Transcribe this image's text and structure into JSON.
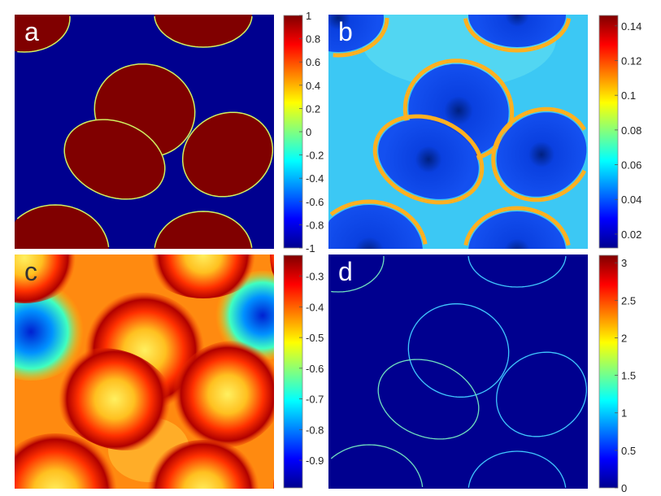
{
  "chart_data": [
    {
      "type": "heatmap",
      "panel_label": "a",
      "colormap": "jet",
      "colorbar": {
        "range": [
          -1,
          1
        ],
        "ticks": [
          "1",
          "0.8",
          "0.6",
          "0.4",
          "0.2",
          "0",
          "-0.2",
          "-0.4",
          "-0.6",
          "-0.8",
          "-1"
        ],
        "tick_values": [
          1,
          0.8,
          0.6,
          0.4,
          0.2,
          0,
          -0.2,
          -0.4,
          -0.6,
          -0.8,
          -1
        ]
      },
      "label_color": "#ffffff"
    },
    {
      "type": "heatmap",
      "panel_label": "b",
      "colormap": "jet",
      "colorbar": {
        "range": [
          0.012,
          0.146
        ],
        "ticks": [
          "0.14",
          "0.12",
          "0.1",
          "0.08",
          "0.06",
          "0.04",
          "0.02"
        ],
        "tick_values": [
          0.14,
          0.12,
          0.1,
          0.08,
          0.06,
          0.04,
          0.02
        ]
      },
      "label_color": "#ffffff"
    },
    {
      "type": "heatmap",
      "panel_label": "c",
      "colormap": "jet",
      "colorbar": {
        "range": [
          -0.99,
          -0.232
        ],
        "ticks": [
          "-0.3",
          "-0.4",
          "-0.5",
          "-0.6",
          "-0.7",
          "-0.8",
          "-0.9"
        ],
        "tick_values": [
          -0.3,
          -0.4,
          -0.5,
          -0.6,
          -0.7,
          -0.8,
          -0.9
        ]
      },
      "label_color": "#333333"
    },
    {
      "type": "heatmap",
      "panel_label": "d",
      "colormap": "jet",
      "colorbar": {
        "range": [
          0,
          3.1
        ],
        "ticks": [
          "3",
          "2.5",
          "2",
          "1.5",
          "1",
          "0.5",
          "0"
        ],
        "tick_values": [
          3,
          2.5,
          2,
          1.5,
          1,
          0.5,
          0
        ]
      },
      "label_color": "#ffffff"
    }
  ]
}
